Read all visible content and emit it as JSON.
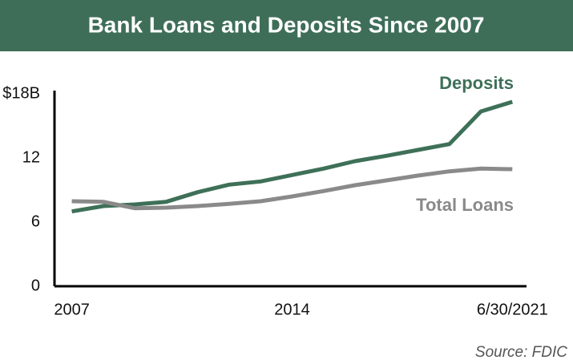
{
  "chart_data": {
    "type": "line",
    "title": "Bank Loans and Deposits Since 2007",
    "x": [
      2007,
      2008,
      2009,
      2010,
      2011,
      2012,
      2013,
      2014,
      2015,
      2016,
      2017,
      2018,
      2019,
      2020,
      2021
    ],
    "series": [
      {
        "name": "Deposits",
        "color": "#3e7058",
        "values": [
          7.0,
          7.5,
          7.65,
          7.9,
          8.8,
          9.5,
          9.8,
          10.4,
          11.0,
          11.7,
          12.2,
          12.75,
          13.3,
          16.35,
          17.25
        ]
      },
      {
        "name": "Total Loans",
        "color": "#8a8a8a",
        "values": [
          7.95,
          7.9,
          7.3,
          7.35,
          7.5,
          7.7,
          7.95,
          8.4,
          8.9,
          9.45,
          9.9,
          10.35,
          10.75,
          11.0,
          10.95
        ]
      }
    ],
    "xlim": [
      2006.45,
      2021.45
    ],
    "xticks": [
      2007,
      2014,
      {
        "value": 2021,
        "label": "6/30/2021"
      }
    ],
    "ylim": [
      0,
      18
    ],
    "yticks": [
      0,
      6,
      12,
      {
        "value": 18,
        "label": "$18B"
      }
    ],
    "source": "Source: FDIC"
  }
}
